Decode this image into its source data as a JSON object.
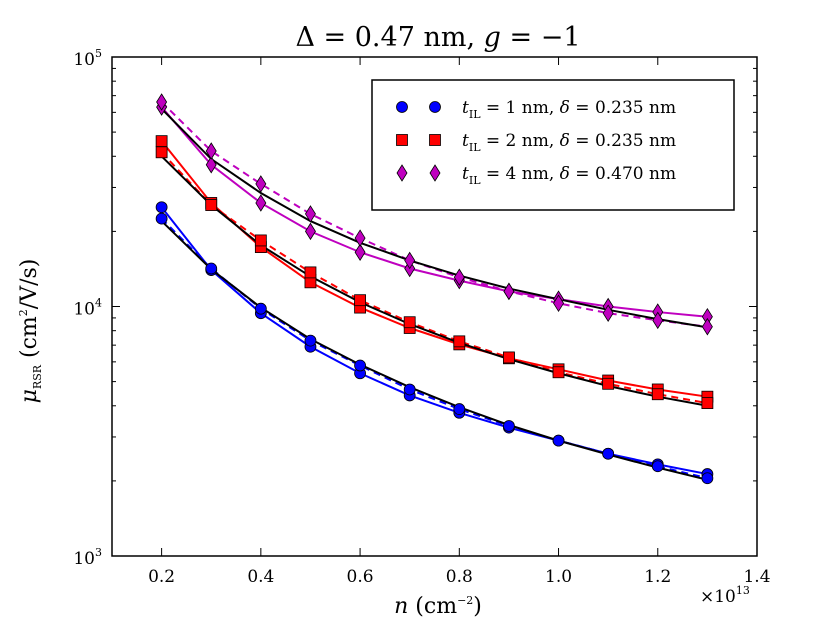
{
  "chart_data": {
    "type": "line",
    "title": "Δ = 0.47 nm, g = −1",
    "title_parts": {
      "delta_sym": "Δ",
      "delta_rest": " = 0.47 nm, ",
      "g_sym": "g",
      "g_rest": " = −1"
    },
    "xlabel": "n (cm⁻²)",
    "xlabel_parts": {
      "var": "n",
      "unit": " (cm",
      "exp": "−2",
      "close": ")"
    },
    "ylabel": "μRSR (cm²/V/s)",
    "ylabel_parts": {
      "var": "μ",
      "sub": "RSR",
      "unit": " (cm",
      "exp": "2",
      "close": "/V/s)"
    },
    "x_multiplier": "×10¹³",
    "x_multiplier_parts": {
      "base": "×10",
      "exp": "13"
    },
    "xlim": [
      0.1,
      1.4
    ],
    "ylim": [
      1000,
      100000
    ],
    "yscale": "log",
    "x_ticks": [
      0.2,
      0.4,
      0.6,
      0.8,
      1.0,
      1.2,
      1.4
    ],
    "x_tick_labels": [
      "0.2",
      "0.4",
      "0.6",
      "0.8",
      "1.0",
      "1.2",
      "1.4"
    ],
    "y_ticks": [
      1000,
      10000,
      100000
    ],
    "y_tick_labels": [
      {
        "base": "10",
        "exp": "3"
      },
      {
        "base": "10",
        "exp": "4"
      },
      {
        "base": "10",
        "exp": "5"
      }
    ],
    "grid": false,
    "legend_placement": "top-right",
    "x": [
      0.2,
      0.3,
      0.4,
      0.5,
      0.6,
      0.7,
      0.8,
      0.9,
      1.0,
      1.1,
      1.2,
      1.3
    ],
    "series": [
      {
        "name": "t_IL = 1 nm, δ = 0.235 nm",
        "legend_parts": {
          "t": "t",
          "sub": "IL",
          "a": " = 1 nm, ",
          "d": "δ",
          "b": " = 0.235 nm"
        },
        "color": "#0000ff",
        "marker": "circle",
        "solid_values": [
          25000,
          14000,
          9400,
          6900,
          5400,
          4400,
          3750,
          3270,
          2900,
          2570,
          2330,
          2130
        ],
        "dashed_values": [
          22500,
          14200,
          9800,
          7300,
          5800,
          4650,
          3880,
          3320,
          2900,
          2570,
          2290,
          2050
        ]
      },
      {
        "name": "t_IL = 2 nm, δ = 0.235 nm",
        "legend_parts": {
          "t": "t",
          "sub": "IL",
          "a": " = 2 nm, ",
          "d": "δ",
          "b": " = 0.235 nm"
        },
        "color": "#ff0000",
        "marker": "square",
        "solid_values": [
          46000,
          26000,
          17300,
          12500,
          9900,
          8200,
          7050,
          6200,
          5600,
          5050,
          4650,
          4350
        ],
        "dashed_values": [
          41500,
          25500,
          18400,
          13700,
          10600,
          8650,
          7250,
          6250,
          5450,
          4900,
          4450,
          4100
        ]
      },
      {
        "name": "t_IL = 4 nm, δ = 0.470 nm",
        "legend_parts": {
          "t": "t",
          "sub": "IL",
          "a": " = 4 nm, ",
          "d": "δ",
          "b": " = 0.470 nm"
        },
        "color": "#bf00bf",
        "marker": "diamond",
        "solid_values": [
          63000,
          37000,
          26000,
          20000,
          16500,
          14200,
          12700,
          11500,
          10700,
          10000,
          9500,
          9100
        ],
        "dashed_values": [
          66000,
          42000,
          31000,
          23500,
          18800,
          15300,
          13100,
          11500,
          10300,
          9400,
          8800,
          8300
        ]
      }
    ],
    "fit_color": "#000000",
    "fit_values": [
      [
        22000,
        14100,
        9900,
        7400,
        5850,
        4750,
        3950,
        3350,
        2900,
        2550,
        2260,
        2020
      ],
      [
        40000,
        25500,
        17600,
        13200,
        10400,
        8500,
        7150,
        6150,
        5400,
        4800,
        4350,
        4000
      ],
      [
        62000,
        39000,
        28500,
        22000,
        18000,
        15300,
        13300,
        11800,
        10700,
        9700,
        8900,
        8250
      ]
    ]
  }
}
